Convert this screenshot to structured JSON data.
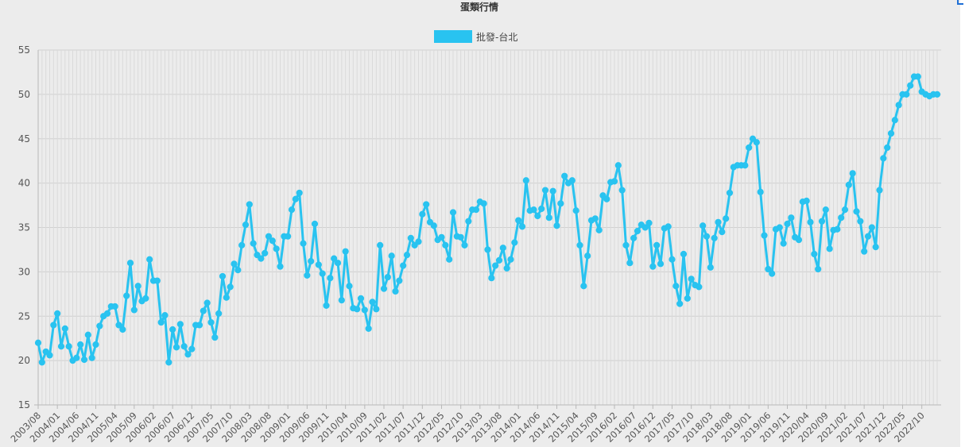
{
  "chart_data": {
    "type": "line",
    "title": "蛋類行情",
    "xlabel": "",
    "ylabel": "",
    "ylim": [
      15,
      55
    ],
    "yticks": [
      15,
      20,
      25,
      30,
      35,
      40,
      45,
      50,
      55
    ],
    "grid": true,
    "legend_position": "top-center",
    "x_start": "2003/08",
    "x_tick_labels": [
      "2003/08",
      "2004/01",
      "2004/06",
      "2004/11",
      "2005/04",
      "2005/09",
      "2006/02",
      "2006/07",
      "2006/12",
      "2007/05",
      "2007/10",
      "2008/03",
      "2008/08",
      "2009/01",
      "2009/06",
      "2009/11",
      "2010/04",
      "2010/09",
      "2011/02",
      "2011/07",
      "2011/12",
      "2012/05",
      "2012/10",
      "2013/03",
      "2013/08",
      "2014/01",
      "2014/06",
      "2014/11",
      "2015/04",
      "2015/09",
      "2016/02",
      "2016/07",
      "2016/12",
      "2017/05",
      "2017/10",
      "2018/03",
      "2018/08",
      "2019/01",
      "2019/06",
      "2019/11",
      "2020/04",
      "2020/09",
      "2021/02",
      "2021/07",
      "2021/12",
      "2022/05",
      "2022/10"
    ],
    "series": [
      {
        "name": "批發-台北",
        "color": "#29c3f0",
        "values": [
          22,
          19.8,
          21,
          20.6,
          24,
          25.3,
          21.6,
          23.6,
          21.6,
          20,
          20.3,
          21.8,
          20.1,
          22.9,
          20.3,
          21.8,
          23.9,
          25,
          25.3,
          26.1,
          26.1,
          24,
          23.5,
          27.3,
          31,
          25.7,
          28.4,
          26.7,
          27,
          31.4,
          29,
          29,
          24.3,
          25.1,
          19.8,
          23.5,
          21.5,
          24.1,
          21.6,
          20.7,
          21.3,
          24,
          24,
          25.6,
          26.5,
          24.3,
          22.6,
          25.3,
          29.5,
          27.1,
          28.3,
          30.9,
          30.2,
          33,
          35.3,
          37.6,
          33.2,
          31.9,
          31.5,
          32.1,
          34,
          33.5,
          32.6,
          30.6,
          34,
          34,
          37,
          38.2,
          38.9,
          33.2,
          29.6,
          31.2,
          35.4,
          30.8,
          29.8,
          26.2,
          29.3,
          31.5,
          31,
          26.8,
          32.3,
          28.4,
          25.9,
          25.8,
          27,
          25.7,
          23.6,
          26.6,
          25.8,
          33,
          28.1,
          29.4,
          31.8,
          27.8,
          29,
          30.7,
          31.9,
          33.8,
          33,
          33.4,
          36.5,
          37.6,
          35.6,
          35.2,
          33.6,
          33.9,
          33,
          31.4,
          36.7,
          34,
          33.9,
          33,
          35.7,
          37,
          37,
          37.9,
          37.7,
          32.5,
          29.3,
          30.7,
          31.3,
          32.7,
          30.4,
          31.4,
          33.3,
          35.8,
          35.1,
          40.3,
          36.9,
          37,
          36.3,
          37.1,
          39.2,
          36.1,
          39.1,
          35.2,
          37.7,
          40.8,
          40,
          40.3,
          36.9,
          33,
          28.4,
          31.8,
          35.8,
          36,
          34.7,
          38.6,
          38.2,
          40.1,
          40.2,
          42,
          39.2,
          33,
          31,
          33.8,
          34.6,
          35.3,
          35,
          35.5,
          30.6,
          33,
          30.9,
          34.9,
          35.1,
          31.4,
          28.4,
          26.4,
          32,
          27,
          29.2,
          28.5,
          28.3,
          35.2,
          34,
          30.5,
          33.8,
          35.6,
          34.5,
          36,
          38.9,
          41.8,
          42,
          42,
          42,
          44,
          45,
          44.6,
          39,
          34.1,
          30.3,
          29.8,
          34.8,
          35,
          33.2,
          35.4,
          36.1,
          33.9,
          33.6,
          37.9,
          38,
          35.6,
          32,
          30.3,
          35.7,
          37,
          32.6,
          34.7,
          34.8,
          36.1,
          37,
          39.8,
          41.1,
          36.8,
          35.7,
          32.3,
          34,
          35,
          32.8,
          39.2,
          42.8,
          44,
          45.6,
          47.1,
          48.8,
          50,
          50,
          51,
          52,
          52,
          50.3,
          50,
          49.8,
          50,
          50
        ]
      }
    ]
  }
}
